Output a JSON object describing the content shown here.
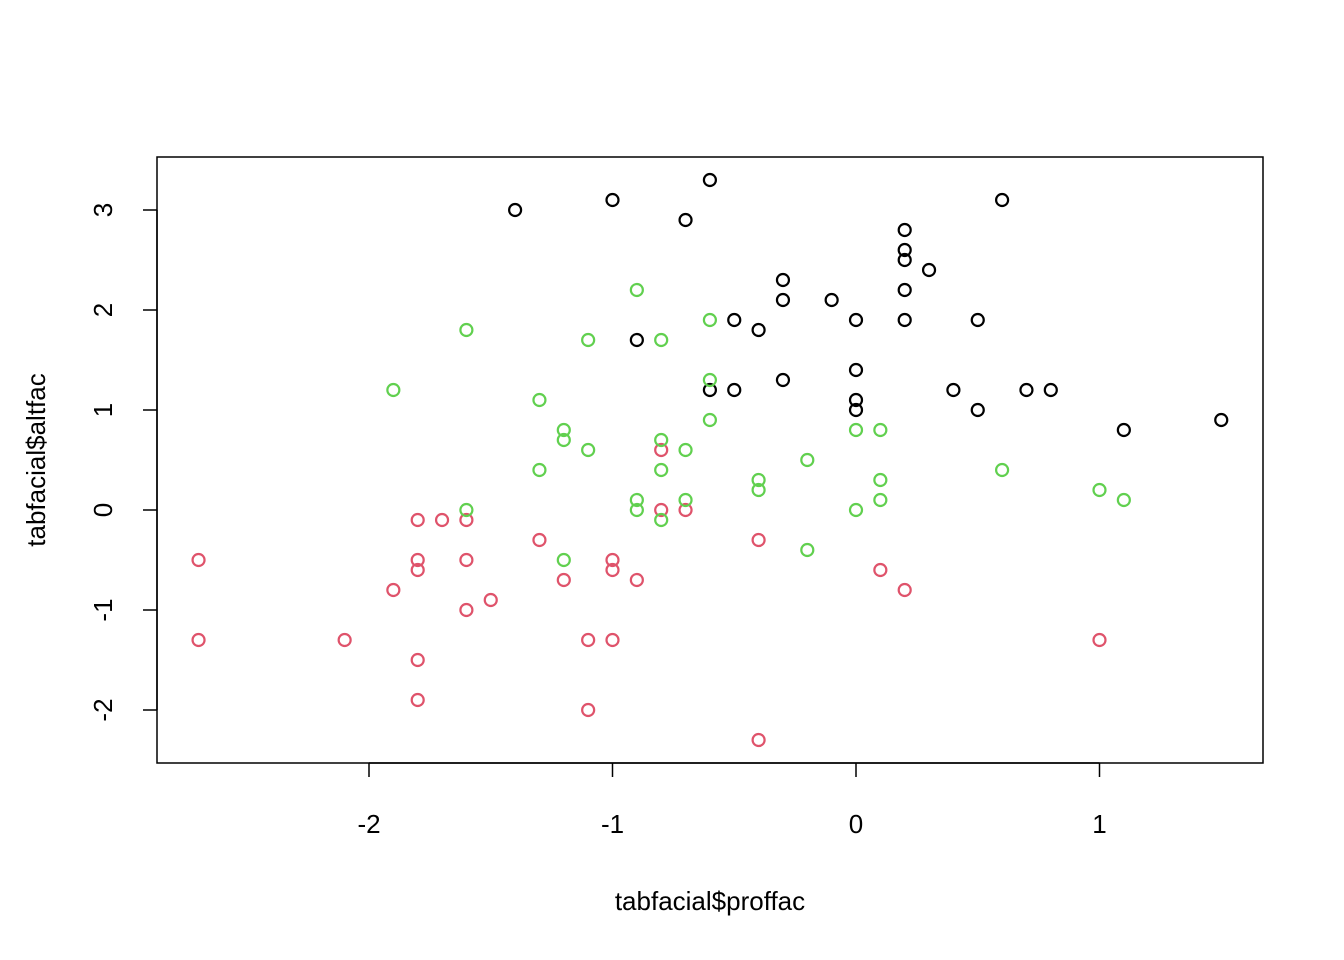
{
  "chart_data": {
    "type": "scatter",
    "xlabel": "tabfacial$proffac",
    "ylabel": "tabfacial$altfac",
    "xlim": [
      -2.7,
      1.5
    ],
    "ylim": [
      -2.5,
      3.5
    ],
    "xticks": [
      "-2",
      "-1",
      "0",
      "1"
    ],
    "yticks": [
      "-2",
      "-1",
      "0",
      "1",
      "2",
      "3"
    ],
    "grid": false,
    "legend": "none",
    "series": [
      {
        "color": "#000000",
        "points": [
          [
            -1.4,
            3.0
          ],
          [
            -1.0,
            3.1
          ],
          [
            -0.7,
            2.9
          ],
          [
            -0.6,
            3.3
          ],
          [
            0.6,
            3.1
          ],
          [
            0.2,
            2.8
          ],
          [
            0.2,
            2.6
          ],
          [
            0.2,
            2.5
          ],
          [
            0.3,
            2.4
          ],
          [
            -0.3,
            2.3
          ],
          [
            0.2,
            2.2
          ],
          [
            -0.3,
            2.1
          ],
          [
            -0.1,
            2.1
          ],
          [
            -0.5,
            1.9
          ],
          [
            0.0,
            1.9
          ],
          [
            0.2,
            1.9
          ],
          [
            0.5,
            1.9
          ],
          [
            -0.4,
            1.8
          ],
          [
            -0.9,
            1.7
          ],
          [
            0.0,
            1.4
          ],
          [
            -0.3,
            1.3
          ],
          [
            -0.6,
            1.2
          ],
          [
            -0.5,
            1.2
          ],
          [
            0.4,
            1.2
          ],
          [
            0.7,
            1.2
          ],
          [
            0.8,
            1.2
          ],
          [
            0.0,
            1.1
          ],
          [
            0.0,
            1.0
          ],
          [
            0.5,
            1.0
          ],
          [
            1.1,
            0.8
          ],
          [
            1.5,
            0.9
          ]
        ]
      },
      {
        "color": "#DF536B",
        "points": [
          [
            -2.7,
            -0.5
          ],
          [
            -2.7,
            -1.3
          ],
          [
            -2.1,
            -1.3
          ],
          [
            -1.9,
            -0.8
          ],
          [
            -1.8,
            -0.1
          ],
          [
            -1.8,
            -0.5
          ],
          [
            -1.8,
            -0.6
          ],
          [
            -1.8,
            -1.5
          ],
          [
            -1.8,
            -1.9
          ],
          [
            -1.7,
            -0.1
          ],
          [
            -1.6,
            -0.1
          ],
          [
            -1.6,
            -0.5
          ],
          [
            -1.6,
            -1.0
          ],
          [
            -1.5,
            -0.9
          ],
          [
            -1.3,
            -0.3
          ],
          [
            -1.2,
            -0.7
          ],
          [
            -1.1,
            -1.3
          ],
          [
            -1.1,
            -2.0
          ],
          [
            -1.0,
            -0.5
          ],
          [
            -1.0,
            -0.6
          ],
          [
            -1.0,
            -1.3
          ],
          [
            -0.9,
            -0.7
          ],
          [
            -0.8,
            0.6
          ],
          [
            -0.8,
            0.0
          ],
          [
            -0.7,
            0.0
          ],
          [
            -0.4,
            -0.3
          ],
          [
            -0.4,
            -2.3
          ],
          [
            0.1,
            -0.6
          ],
          [
            0.2,
            -0.8
          ],
          [
            1.0,
            -1.3
          ]
        ]
      },
      {
        "color": "#61D04F",
        "points": [
          [
            -1.9,
            1.2
          ],
          [
            -1.6,
            1.8
          ],
          [
            -1.6,
            0.0
          ],
          [
            -1.3,
            1.1
          ],
          [
            -1.3,
            0.4
          ],
          [
            -1.2,
            0.8
          ],
          [
            -1.2,
            0.7
          ],
          [
            -1.2,
            -0.5
          ],
          [
            -1.1,
            1.7
          ],
          [
            -1.1,
            0.6
          ],
          [
            -0.9,
            2.2
          ],
          [
            -0.9,
            0.1
          ],
          [
            -0.9,
            0.0
          ],
          [
            -0.8,
            1.7
          ],
          [
            -0.8,
            0.7
          ],
          [
            -0.8,
            0.4
          ],
          [
            -0.8,
            -0.1
          ],
          [
            -0.7,
            0.6
          ],
          [
            -0.7,
            0.1
          ],
          [
            -0.6,
            1.9
          ],
          [
            -0.6,
            1.3
          ],
          [
            -0.6,
            0.9
          ],
          [
            -0.4,
            0.3
          ],
          [
            -0.4,
            0.2
          ],
          [
            -0.2,
            0.5
          ],
          [
            -0.2,
            -0.4
          ],
          [
            0.0,
            0.8
          ],
          [
            0.0,
            0.0
          ],
          [
            0.1,
            0.8
          ],
          [
            0.1,
            0.3
          ],
          [
            0.1,
            0.1
          ],
          [
            0.6,
            0.4
          ],
          [
            1.0,
            0.2
          ],
          [
            1.1,
            0.1
          ]
        ]
      }
    ]
  }
}
